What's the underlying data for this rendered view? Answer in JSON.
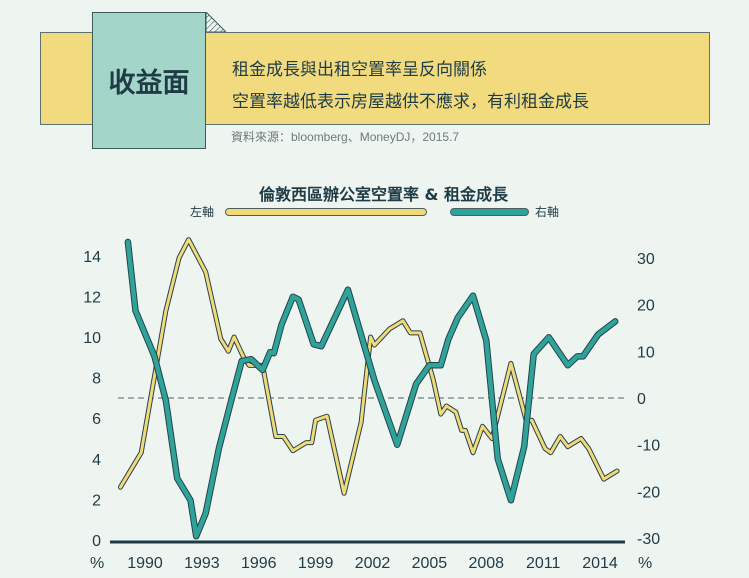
{
  "header": {
    "tag": "收益面",
    "line1": "租金成長與出租空置率呈反向關係",
    "line2": "空置率越低表示房屋越供不應求，有利租金成長",
    "source": "資料來源：bloomberg、MoneyDJ，2015.7"
  },
  "chart_data": {
    "type": "line",
    "title": "倫敦西區辦公室空置率 & 租金成長",
    "legend": {
      "left_label": "左軸",
      "right_label": "右軸",
      "placement": "top-center"
    },
    "x_ticks": [
      "1990",
      "1993",
      "1996",
      "1999",
      "2002",
      "2005",
      "2008",
      "2011",
      "2014"
    ],
    "x_range": [
      1988,
      2015.5
    ],
    "left_axis": {
      "unit": "%",
      "ticks": [
        "0",
        "2",
        "4",
        "6",
        "8",
        "10",
        "12",
        "14"
      ],
      "range": [
        0,
        14
      ]
    },
    "right_axis": {
      "unit": "%",
      "ticks": [
        "-30",
        "-20",
        "-10",
        "0",
        "10",
        "20",
        "30"
      ],
      "range": [
        -30,
        30
      ]
    },
    "reference_line": {
      "axis": "right",
      "value": 0,
      "style": "dashed"
    },
    "series": [
      {
        "name": "倫敦西區辦公室空置率",
        "axis": "left",
        "color": "#f2d97a",
        "x": [
          1988.7,
          1989.8,
          1991.1,
          1991.8,
          1992.3,
          1993.2,
          1994.0,
          1994.4,
          1994.7,
          1995.2,
          1995.5,
          1996.2,
          1996.9,
          1997.3,
          1997.8,
          1998.5,
          1998.8,
          1999.0,
          1999.6,
          2000.5,
          2001.4,
          2001.9,
          2002.1,
          2002.9,
          2003.6,
          2004.0,
          2004.5,
          2005.2,
          2005.6,
          2005.9,
          2006.4,
          2006.7,
          2006.9,
          2007.3,
          2007.8,
          2008.3,
          2009.3,
          2010.1,
          2010.4,
          2011.1,
          2011.4,
          2011.9,
          2012.3,
          2013.0,
          2013.4,
          2014.2,
          2014.9
        ],
        "values": [
          2.6,
          4.3,
          11.3,
          13.9,
          14.8,
          13.2,
          9.9,
          9.3,
          10.0,
          9.0,
          8.6,
          8.6,
          5.1,
          5.1,
          4.4,
          4.8,
          4.8,
          5.9,
          6.1,
          2.3,
          5.8,
          10.0,
          9.6,
          10.4,
          10.8,
          10.2,
          10.2,
          7.9,
          6.2,
          6.6,
          6.3,
          5.4,
          5.4,
          4.3,
          5.6,
          5.0,
          8.7,
          5.9,
          5.9,
          4.5,
          4.3,
          5.1,
          4.6,
          5.0,
          4.5,
          3.0,
          3.4
        ]
      },
      {
        "name": "租金成長",
        "axis": "right",
        "color": "#2fa39a",
        "x": [
          1989.1,
          1989.5,
          1990.5,
          1991.1,
          1991.7,
          1992.4,
          1992.7,
          1993.2,
          1993.9,
          1994.5,
          1995.1,
          1995.6,
          1996.2,
          1996.6,
          1996.8,
          1997.2,
          1997.8,
          1998.1,
          1998.9,
          1999.3,
          2000.7,
          2002.1,
          2003.3,
          2004.3,
          2005.0,
          2005.6,
          2006.0,
          2006.5,
          2007.3,
          2008.0,
          2008.6,
          2009.3,
          2010.0,
          2010.5,
          2011.3,
          2012.3,
          2012.8,
          2013.1,
          2013.9,
          2014.8
        ],
        "values": [
          33.4,
          18.7,
          8.9,
          -0.6,
          -17.2,
          -21.9,
          -29.6,
          -24.7,
          -10.8,
          -1.3,
          7.9,
          8.3,
          6.0,
          9.8,
          9.6,
          15.7,
          21.7,
          21.1,
          11.5,
          11.1,
          23.2,
          3.8,
          -10.0,
          3.0,
          7.0,
          7.0,
          12.6,
          17.2,
          21.9,
          12.3,
          -13.0,
          -21.9,
          -10.4,
          9.4,
          13.0,
          7.0,
          8.9,
          8.9,
          13.6,
          16.4
        ]
      }
    ]
  }
}
